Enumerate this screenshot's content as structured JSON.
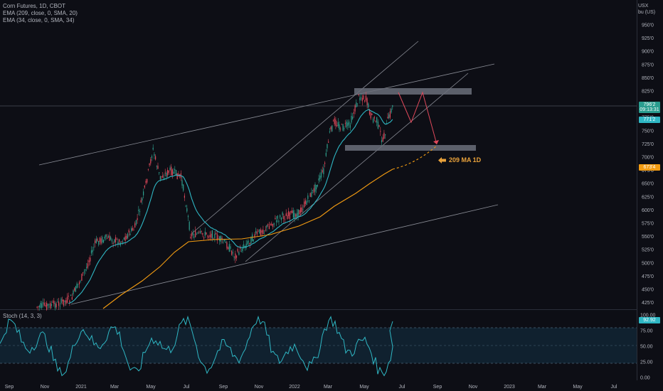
{
  "legend": {
    "title": "Corn Futures, 1D, CBOT",
    "ema1": "EMA (209, close, 0, SMA, 20)",
    "ema2": "EMA (34, close, 0, SMA, 34)",
    "stoch": "Stoch (14, 3, 3)"
  },
  "axis": {
    "currency": "USX",
    "unit": "bu (US)",
    "price_ticks": [
      "950'0",
      "925'0",
      "900'0",
      "875'0",
      "850'0",
      "825'0",
      "800'0",
      "775'0",
      "750'0",
      "725'0",
      "700'0",
      "675'0",
      "650'0",
      "625'0",
      "600'0",
      "575'0",
      "550'0",
      "525'0",
      "500'0",
      "475'0",
      "450'0",
      "425'0"
    ],
    "stoch_ticks": [
      "100.00",
      "75.00",
      "50.00",
      "25.00",
      "0.00"
    ],
    "time_labels": [
      "Sep",
      "Nov",
      "2021",
      "Mar",
      "May",
      "Jul",
      "Sep",
      "Nov",
      "2022",
      "Mar",
      "May",
      "Jul",
      "Sep",
      "Nov",
      "2023",
      "Mar",
      "May",
      "Jul"
    ]
  },
  "tags": {
    "last_price": "796'2",
    "countdown": "09:13:31",
    "ema34": "771'2",
    "ema209": "673'4",
    "stoch_value": "92.92"
  },
  "annotation": {
    "label": "209 MA 1D"
  },
  "colors": {
    "background": "#0d0e15",
    "price_tag": "#2a9d8f",
    "ema34_line": "#2fb7c4",
    "ema209_line": "#f39c12",
    "bull_candle": "#2fa08e",
    "bear_candle": "#e0495b",
    "stoch_line": "#2fb7c4",
    "projection": "#e0495b",
    "zone": "#6b6f7a"
  }
}
